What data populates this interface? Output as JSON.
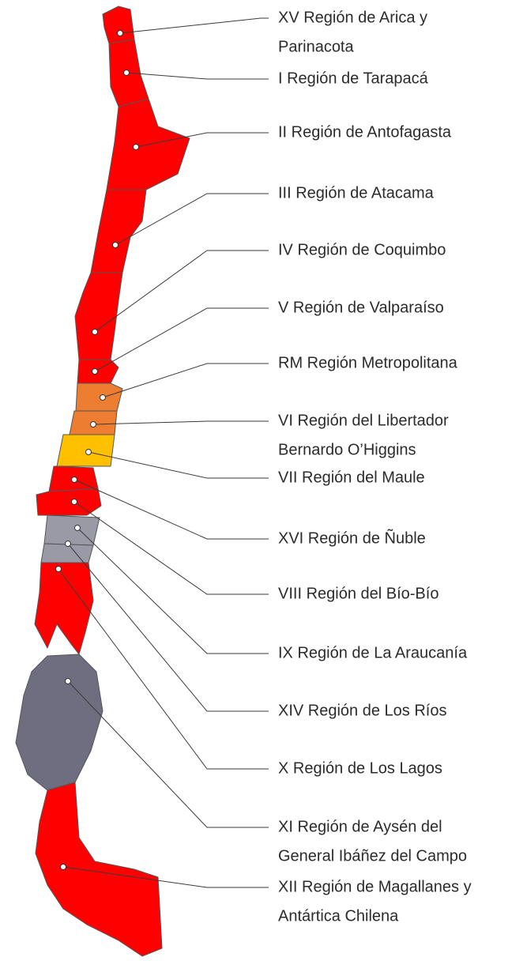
{
  "regions": [
    {
      "lines": [
        "XV Región de Arica y",
        "Parinacota"
      ]
    },
    {
      "lines": [
        "I Región de Tarapacá"
      ]
    },
    {
      "lines": [
        "II Región de Antofagasta"
      ]
    },
    {
      "lines": [
        "III Región de Atacama"
      ]
    },
    {
      "lines": [
        "IV Región de Coquimbo"
      ]
    },
    {
      "lines": [
        "V Región de Valparaíso"
      ]
    },
    {
      "lines": [
        "RM Región Metropolitana"
      ]
    },
    {
      "lines": [
        "VI Región del Libertador",
        "Bernardo O’Higgins"
      ]
    },
    {
      "lines": [
        "VII Región del Maule"
      ]
    },
    {
      "lines": [
        "XVI Región de Ñuble"
      ]
    },
    {
      "lines": [
        "VIII Región del Bío-Bío"
      ]
    },
    {
      "lines": [
        "IX Región de La Araucanía"
      ]
    },
    {
      "lines": [
        "XIV Región de Los Ríos"
      ]
    },
    {
      "lines": [
        "X Región de Los Lagos"
      ]
    },
    {
      "lines": [
        "XI Región de Aysén del",
        "General Ibáñez del Campo"
      ]
    },
    {
      "lines": [
        "XII Región de Magallanes y",
        "Antártica Chilena"
      ]
    }
  ]
}
